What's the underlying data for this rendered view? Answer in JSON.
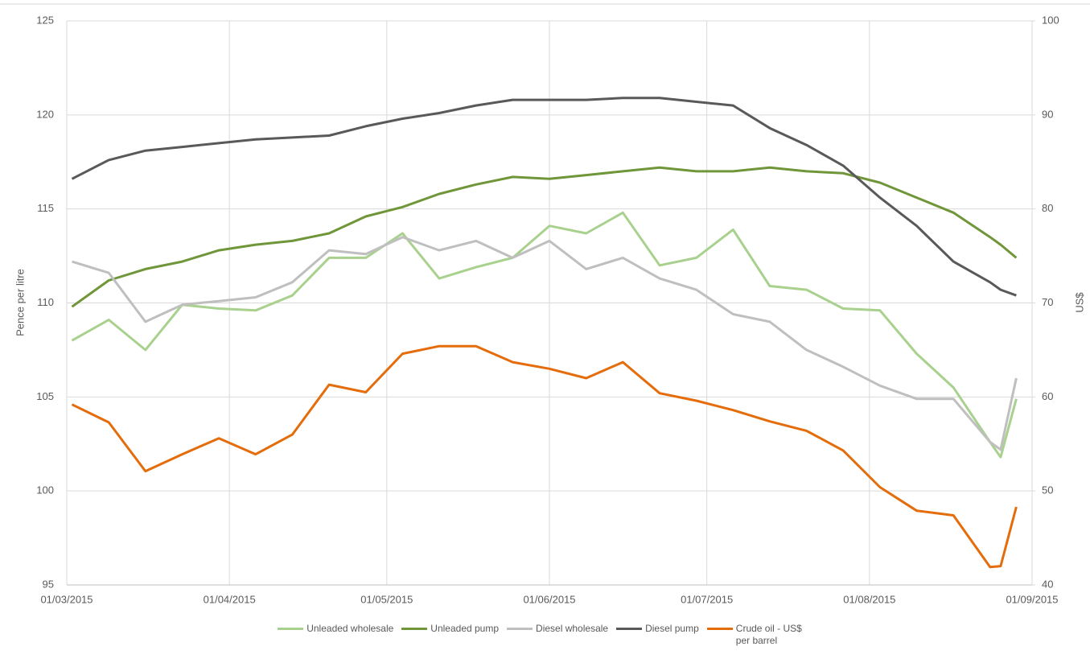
{
  "chart_data": {
    "type": "line",
    "ylabel": "Pence per litre",
    "y2label": "US$",
    "x": [
      "02/03/2015",
      "09/03/2015",
      "16/03/2015",
      "23/03/2015",
      "30/03/2015",
      "06/04/2015",
      "13/04/2015",
      "20/04/2015",
      "27/04/2015",
      "04/05/2015",
      "11/05/2015",
      "18/05/2015",
      "25/05/2015",
      "01/06/2015",
      "08/06/2015",
      "15/06/2015",
      "22/06/2015",
      "29/06/2015",
      "06/07/2015",
      "13/07/2015",
      "20/07/2015",
      "27/07/2015",
      "03/08/2015",
      "10/08/2015",
      "17/08/2015",
      "24/08/2015",
      "26/08/2015",
      "29/08/2015"
    ],
    "xlim": [
      "01/03/2015",
      "01/09/2015"
    ],
    "xticks": [
      "01/03/2015",
      "01/04/2015",
      "01/05/2015",
      "01/06/2015",
      "01/07/2015",
      "01/08/2015",
      "01/09/2015"
    ],
    "ylim": [
      95,
      125
    ],
    "yticks": [
      95,
      100,
      105,
      110,
      115,
      120,
      125
    ],
    "y2lim": [
      40,
      100
    ],
    "y2ticks": [
      40,
      50,
      60,
      70,
      80,
      90,
      100
    ],
    "grid": true,
    "legend": "bottom",
    "series": [
      {
        "name": "Unleaded wholesale",
        "color": "#a9d18e",
        "values": [
          108.0,
          109.1,
          107.5,
          109.9,
          109.7,
          109.6,
          110.4,
          112.4,
          112.4,
          113.7,
          111.3,
          111.9,
          112.4,
          114.1,
          113.7,
          114.8,
          112.0,
          112.4,
          113.9,
          110.9,
          110.7,
          109.7,
          109.6,
          107.3,
          105.5,
          102.6,
          101.8,
          104.9
        ]
      },
      {
        "name": "Unleaded pump",
        "color": "#70963a",
        "values": [
          109.8,
          111.2,
          111.8,
          112.2,
          112.8,
          113.1,
          113.3,
          113.7,
          114.6,
          115.1,
          115.8,
          116.3,
          116.7,
          116.6,
          116.8,
          117.0,
          117.2,
          117.0,
          117.0,
          117.2,
          117.0,
          116.9,
          116.4,
          115.6,
          114.8,
          113.5,
          113.1,
          112.4
        ]
      },
      {
        "name": "Diesel wholesale",
        "color": "#bfbfbf",
        "values": [
          112.2,
          111.6,
          109.0,
          109.9,
          110.1,
          110.3,
          111.1,
          112.8,
          112.6,
          113.5,
          112.8,
          113.3,
          112.4,
          113.3,
          111.8,
          112.4,
          111.3,
          110.7,
          109.4,
          109.0,
          107.5,
          106.6,
          105.6,
          104.9,
          104.9,
          102.6,
          102.2,
          106.0
        ]
      },
      {
        "name": "Diesel pump",
        "color": "#595959",
        "values": [
          116.6,
          117.6,
          118.1,
          118.3,
          118.5,
          118.7,
          118.8,
          118.9,
          119.4,
          119.8,
          120.1,
          120.5,
          120.8,
          120.8,
          120.8,
          120.9,
          120.9,
          120.7,
          120.5,
          119.3,
          118.4,
          117.3,
          115.6,
          114.1,
          112.2,
          111.1,
          110.7,
          110.4
        ]
      },
      {
        "name": "Crude oil - US$ per barrel",
        "color": "#e46c0a",
        "axis": "y2",
        "values": [
          59.2,
          57.3,
          52.1,
          53.9,
          55.6,
          53.9,
          56.0,
          61.3,
          60.5,
          64.6,
          65.4,
          65.4,
          63.7,
          63.0,
          62.0,
          63.7,
          60.4,
          59.6,
          58.6,
          57.4,
          56.4,
          54.3,
          50.4,
          47.9,
          47.4,
          41.9,
          42.0,
          48.3
        ]
      }
    ]
  }
}
